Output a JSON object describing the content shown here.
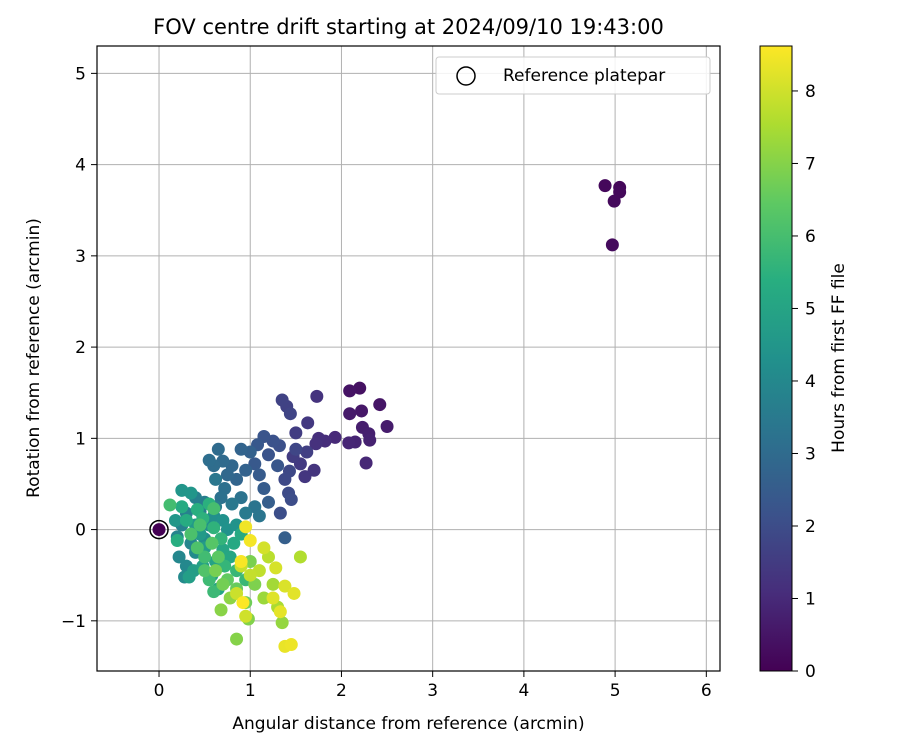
{
  "chart_data": {
    "type": "scatter",
    "title": "FOV centre drift starting at 2024/09/10 19:43:00",
    "xlabel": "Angular distance from reference (arcmin)",
    "ylabel": "Rotation from reference (arcmin)",
    "xlim": [
      -0.68,
      6.15
    ],
    "ylim": [
      -1.55,
      5.3
    ],
    "xticks": [
      "0",
      "1",
      "2",
      "3",
      "4",
      "5",
      "6"
    ],
    "yticks": [
      "−1",
      "0",
      "1",
      "2",
      "3",
      "4",
      "5"
    ],
    "grid": true,
    "legend": {
      "placement": "top-right",
      "entries": [
        "Reference platepar"
      ]
    },
    "reference_point": {
      "x": 0,
      "y": 0
    },
    "colorbar": {
      "label": "Hours from first FF file",
      "colormap": "viridis",
      "range": [
        0,
        8.62
      ],
      "ticks": [
        "0",
        "1",
        "2",
        "3",
        "4",
        "5",
        "6",
        "7",
        "8"
      ]
    },
    "points": [
      [
        5.05,
        3.75,
        0.15
      ],
      [
        4.89,
        3.77,
        0.18
      ],
      [
        5.05,
        3.7,
        0.2
      ],
      [
        4.99,
        3.6,
        0.22
      ],
      [
        4.97,
        3.12,
        0.25
      ],
      [
        2.2,
        1.55,
        0.4
      ],
      [
        2.09,
        1.52,
        0.45
      ],
      [
        2.42,
        1.37,
        0.5
      ],
      [
        2.22,
        1.3,
        0.55
      ],
      [
        2.09,
        1.27,
        0.6
      ],
      [
        2.5,
        1.13,
        0.65
      ],
      [
        2.23,
        1.12,
        0.7
      ],
      [
        2.3,
        1.05,
        0.75
      ],
      [
        2.31,
        0.98,
        0.8
      ],
      [
        2.15,
        0.96,
        0.85
      ],
      [
        2.08,
        0.95,
        0.9
      ],
      [
        2.27,
        0.73,
        0.95
      ],
      [
        1.93,
        1.01,
        1.0
      ],
      [
        1.82,
        0.97,
        1.1
      ],
      [
        1.75,
        1.0,
        1.15
      ],
      [
        1.72,
        0.94,
        1.2
      ],
      [
        1.73,
        1.46,
        1.25
      ],
      [
        1.7,
        0.65,
        1.3
      ],
      [
        1.6,
        0.58,
        1.35
      ],
      [
        1.63,
        1.17,
        1.4
      ],
      [
        1.55,
        0.72,
        1.45
      ],
      [
        1.47,
        0.8,
        1.5
      ],
      [
        1.5,
        1.06,
        1.55
      ],
      [
        1.62,
        0.85,
        1.6
      ],
      [
        1.4,
        1.35,
        1.65
      ],
      [
        1.35,
        1.42,
        1.7
      ],
      [
        1.44,
        1.27,
        1.75
      ],
      [
        1.5,
        0.88,
        1.8
      ],
      [
        1.43,
        0.64,
        1.85
      ],
      [
        1.38,
        0.55,
        1.9
      ],
      [
        1.42,
        0.4,
        1.95
      ],
      [
        1.45,
        0.33,
        2.0
      ],
      [
        1.33,
        0.18,
        2.05
      ],
      [
        1.32,
        0.92,
        2.1
      ],
      [
        1.25,
        0.97,
        2.15
      ],
      [
        1.2,
        0.82,
        2.2
      ],
      [
        1.15,
        1.02,
        2.25
      ],
      [
        1.3,
        0.7,
        2.3
      ],
      [
        1.08,
        0.93,
        2.35
      ],
      [
        1.05,
        0.72,
        2.4
      ],
      [
        1.1,
        0.6,
        2.45
      ],
      [
        1.15,
        0.45,
        2.5
      ],
      [
        1.2,
        0.3,
        2.55
      ],
      [
        1.38,
        -0.09,
        2.6
      ],
      [
        1.0,
        0.85,
        2.65
      ],
      [
        0.95,
        0.65,
        2.7
      ],
      [
        0.9,
        0.88,
        2.75
      ],
      [
        0.85,
        0.55,
        2.8
      ],
      [
        0.8,
        0.7,
        2.85
      ],
      [
        0.75,
        0.6,
        2.9
      ],
      [
        0.7,
        0.75,
        2.95
      ],
      [
        0.65,
        0.88,
        3.0
      ],
      [
        0.6,
        0.7,
        3.05
      ],
      [
        0.55,
        0.76,
        3.1
      ],
      [
        0.72,
        0.45,
        3.15
      ],
      [
        0.68,
        0.35,
        3.2
      ],
      [
        0.9,
        0.35,
        3.25
      ],
      [
        1.05,
        0.25,
        3.3
      ],
      [
        1.1,
        0.15,
        3.35
      ],
      [
        0.62,
        0.55,
        3.4
      ],
      [
        0.8,
        0.28,
        3.45
      ],
      [
        0.95,
        0.18,
        3.5
      ],
      [
        0.62,
        0.25,
        3.55
      ],
      [
        0.5,
        0.3,
        3.6
      ],
      [
        0.45,
        0.2,
        3.65
      ],
      [
        0.4,
        0.35,
        3.7
      ],
      [
        0.3,
        0.18,
        3.75
      ],
      [
        0.25,
        0.05,
        3.8
      ],
      [
        0.2,
        -0.08,
        3.85
      ],
      [
        0.35,
        -0.15,
        3.9
      ],
      [
        0.22,
        -0.3,
        3.95
      ],
      [
        0.3,
        -0.4,
        4.0
      ],
      [
        0.28,
        -0.52,
        4.05
      ],
      [
        0.4,
        -0.25,
        4.1
      ],
      [
        0.5,
        -0.1,
        4.15
      ],
      [
        0.55,
        0.05,
        4.2
      ],
      [
        0.6,
        0.15,
        4.25
      ],
      [
        0.7,
        0.1,
        4.3
      ],
      [
        0.75,
        0.0,
        4.35
      ],
      [
        0.85,
        0.05,
        4.4
      ],
      [
        0.25,
        0.43,
        4.45
      ],
      [
        0.35,
        0.4,
        4.5
      ],
      [
        0.18,
        0.1,
        4.55
      ],
      [
        0.4,
        0.05,
        4.6
      ],
      [
        0.45,
        -0.05,
        4.65
      ],
      [
        0.5,
        -0.2,
        4.7
      ],
      [
        0.38,
        -0.45,
        4.75
      ],
      [
        0.33,
        -0.52,
        4.8
      ],
      [
        0.48,
        -0.4,
        4.85
      ],
      [
        0.58,
        -0.5,
        4.9
      ],
      [
        0.62,
        -0.35,
        4.95
      ],
      [
        0.65,
        -0.65,
        5.0
      ],
      [
        0.7,
        -0.22,
        5.05
      ],
      [
        0.78,
        -0.3,
        5.1
      ],
      [
        0.82,
        -0.15,
        5.15
      ],
      [
        0.9,
        -0.05,
        5.2
      ],
      [
        0.25,
        0.25,
        5.25
      ],
      [
        0.3,
        0.1,
        5.3
      ],
      [
        0.2,
        -0.12,
        5.35
      ],
      [
        0.42,
        0.22,
        5.4
      ],
      [
        0.55,
        0.28,
        5.45
      ],
      [
        0.48,
        0.12,
        5.5
      ],
      [
        0.6,
        0.02,
        5.55
      ],
      [
        0.68,
        -0.1,
        5.6
      ],
      [
        0.72,
        -0.4,
        5.65
      ],
      [
        0.85,
        -0.45,
        5.7
      ],
      [
        0.95,
        -0.55,
        5.75
      ],
      [
        0.6,
        -0.68,
        5.8
      ],
      [
        0.55,
        -0.55,
        5.85
      ],
      [
        0.5,
        -0.3,
        5.9
      ],
      [
        0.12,
        0.27,
        5.95
      ],
      [
        0.6,
        0.23,
        6.0
      ],
      [
        0.45,
        0.05,
        6.05
      ],
      [
        0.35,
        -0.05,
        6.1
      ],
      [
        0.42,
        -0.2,
        6.15
      ],
      [
        0.5,
        -0.45,
        6.2
      ],
      [
        0.58,
        -0.15,
        6.3
      ],
      [
        0.65,
        -0.3,
        6.4
      ],
      [
        0.75,
        -0.55,
        6.5
      ],
      [
        0.85,
        -0.65,
        6.6
      ],
      [
        0.95,
        -0.8,
        6.7
      ],
      [
        0.7,
        -0.6,
        6.75
      ],
      [
        0.62,
        -0.45,
        6.8
      ],
      [
        1.0,
        -0.35,
        6.85
      ],
      [
        1.05,
        -0.6,
        6.9
      ],
      [
        0.98,
        -0.98,
        6.95
      ],
      [
        0.85,
        -1.2,
        7.0
      ],
      [
        0.68,
        -0.88,
        7.05
      ],
      [
        0.78,
        -0.75,
        7.1
      ],
      [
        1.35,
        -1.02,
        7.2
      ],
      [
        1.15,
        -0.75,
        7.3
      ],
      [
        1.25,
        -0.6,
        7.4
      ],
      [
        1.3,
        -0.85,
        7.5
      ],
      [
        1.55,
        -0.3,
        7.6
      ],
      [
        1.2,
        -0.3,
        7.7
      ],
      [
        1.1,
        -0.45,
        7.8
      ],
      [
        1.0,
        -0.5,
        7.85
      ],
      [
        0.9,
        -0.4,
        7.9
      ],
      [
        0.85,
        -0.7,
        7.95
      ],
      [
        0.95,
        -0.95,
        8.0
      ],
      [
        1.15,
        -0.2,
        8.05
      ],
      [
        1.28,
        -0.42,
        8.1
      ],
      [
        1.38,
        -0.62,
        8.15
      ],
      [
        1.25,
        -0.75,
        8.2
      ],
      [
        1.48,
        -0.7,
        8.25
      ],
      [
        1.33,
        -0.9,
        8.3
      ],
      [
        1.38,
        -1.28,
        8.35
      ],
      [
        1.45,
        -1.26,
        8.4
      ],
      [
        0.95,
        0.03,
        8.45
      ],
      [
        1.0,
        -0.12,
        8.5
      ],
      [
        0.9,
        -0.35,
        8.55
      ],
      [
        0.92,
        -0.8,
        8.6
      ]
    ]
  }
}
